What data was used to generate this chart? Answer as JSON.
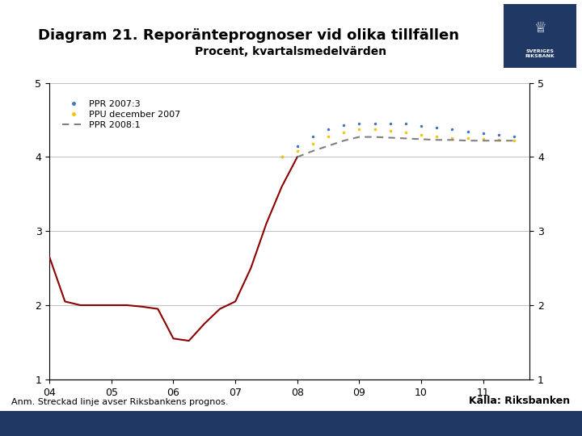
{
  "title": "Diagram 21. Reporänteprognoser vid olika tillfällen",
  "subtitle": "Procent, kvartalsmedelvärden",
  "footnote": "Anm. Streckad linje avser Riksbankens prognos.",
  "source": "Källa: Riksbanken",
  "xlim": [
    2004.0,
    2011.75
  ],
  "ylim": [
    1,
    5
  ],
  "yticks": [
    1,
    2,
    3,
    4,
    5
  ],
  "xticks": [
    2004,
    2005,
    2006,
    2007,
    2008,
    2009,
    2010,
    2011
  ],
  "xticklabels": [
    "04",
    "05",
    "06",
    "07",
    "08",
    "09",
    "10",
    "11"
  ],
  "actual_x": [
    2004.0,
    2004.25,
    2004.5,
    2004.75,
    2005.0,
    2005.25,
    2005.5,
    2005.75,
    2006.0,
    2006.25,
    2006.5,
    2006.75,
    2007.0,
    2007.25,
    2007.5,
    2007.75,
    2008.0
  ],
  "actual_y": [
    2.65,
    2.05,
    2.0,
    2.0,
    2.0,
    2.0,
    1.98,
    1.95,
    1.55,
    1.52,
    1.75,
    1.95,
    2.05,
    2.5,
    3.1,
    3.6,
    4.0
  ],
  "ppr2007_3_x": [
    2007.75,
    2008.0,
    2008.25,
    2008.5,
    2008.75,
    2009.0,
    2009.25,
    2009.5,
    2009.75,
    2010.0,
    2010.25,
    2010.5,
    2010.75,
    2011.0,
    2011.25,
    2011.5
  ],
  "ppr2007_3_y": [
    4.0,
    4.15,
    4.28,
    4.38,
    4.43,
    4.45,
    4.45,
    4.45,
    4.45,
    4.42,
    4.4,
    4.37,
    4.34,
    4.32,
    4.3,
    4.28
  ],
  "ppu_dec2007_x": [
    2007.75,
    2008.0,
    2008.25,
    2008.5,
    2008.75,
    2009.0,
    2009.25,
    2009.5,
    2009.75,
    2010.0,
    2010.25,
    2010.5,
    2010.75,
    2011.0,
    2011.25,
    2011.5
  ],
  "ppu_dec2007_y": [
    4.0,
    4.08,
    4.18,
    4.28,
    4.33,
    4.37,
    4.37,
    4.35,
    4.33,
    4.3,
    4.28,
    4.26,
    4.25,
    4.24,
    4.23,
    4.22
  ],
  "ppr2008_1_x": [
    2008.0,
    2008.25,
    2008.5,
    2008.75,
    2009.0,
    2009.25,
    2009.5,
    2009.75,
    2010.0,
    2010.25,
    2010.5,
    2010.75,
    2011.0,
    2011.25,
    2011.5
  ],
  "ppr2008_1_y": [
    4.0,
    4.08,
    4.15,
    4.22,
    4.27,
    4.27,
    4.26,
    4.25,
    4.24,
    4.23,
    4.23,
    4.22,
    4.22,
    4.22,
    4.22
  ],
  "actual_color": "#8B0000",
  "ppr2007_3_color": "#4472C4",
  "ppu_dec2007_color": "#FFC000",
  "ppr2008_1_color": "#808080",
  "bg_color": "#FFFFFF",
  "footer_bar_color": "#1F3864",
  "logo_bar_color": "#1F3864",
  "grid_color": "#C0C0C0",
  "title_fontsize": 13,
  "subtitle_fontsize": 10,
  "tick_fontsize": 9,
  "legend_fontsize": 8,
  "footnote_fontsize": 8,
  "source_fontsize": 9
}
